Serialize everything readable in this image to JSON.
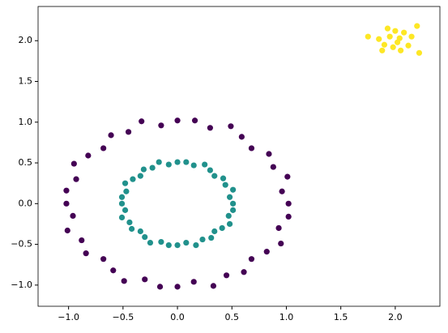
{
  "chart_data": {
    "type": "scatter",
    "series": [
      {
        "color": "#440154",
        "x": [
          1.02,
          0.96,
          1.01,
          0.88,
          0.84,
          0.68,
          0.59,
          0.49,
          0.3,
          0.16,
          0,
          -0.15,
          -0.33,
          -0.45,
          -0.61,
          -0.68,
          -0.82,
          -0.95,
          -0.93,
          -1.02,
          -1.02,
          -0.96,
          -1.01,
          -0.88,
          -0.84,
          -0.68,
          -0.59,
          -0.49,
          -0.3,
          -0.16,
          0,
          0.15,
          0.33,
          0.45,
          0.61,
          0.68,
          0.82,
          0.95,
          0.93,
          1.02
        ],
        "values": [
          0,
          0.15,
          0.33,
          0.45,
          0.61,
          0.68,
          0.82,
          0.95,
          0.93,
          1.02,
          1.02,
          0.96,
          1.01,
          0.88,
          0.84,
          0.68,
          0.59,
          0.49,
          0.3,
          0.16,
          0,
          -0.15,
          -0.33,
          -0.45,
          -0.61,
          -0.68,
          -0.82,
          -0.95,
          -0.93,
          -1.02,
          -1.02,
          -0.96,
          -1.01,
          -0.88,
          -0.84,
          -0.68,
          -0.59,
          -0.49,
          -0.3,
          -0.16
        ]
      },
      {
        "color": "#21918c",
        "x": [
          0.51,
          0.48,
          0.51,
          0.44,
          0.42,
          0.34,
          0.3,
          0.25,
          0.15,
          0.08,
          0,
          -0.08,
          -0.17,
          -0.23,
          -0.31,
          -0.34,
          -0.41,
          -0.48,
          -0.47,
          -0.51,
          -0.51,
          -0.48,
          -0.51,
          -0.44,
          -0.42,
          -0.34,
          -0.3,
          -0.25,
          -0.15,
          -0.08,
          0,
          0.08,
          0.17,
          0.23,
          0.31,
          0.34,
          0.41,
          0.48,
          0.47,
          0.51
        ],
        "values": [
          0,
          0.08,
          0.17,
          0.23,
          0.31,
          0.34,
          0.41,
          0.48,
          0.47,
          0.51,
          0.51,
          0.48,
          0.51,
          0.44,
          0.42,
          0.34,
          0.3,
          0.25,
          0.15,
          0.08,
          0,
          -0.08,
          -0.17,
          -0.23,
          -0.31,
          -0.34,
          -0.41,
          -0.48,
          -0.47,
          -0.51,
          -0.51,
          -0.48,
          -0.51,
          -0.44,
          -0.42,
          -0.34,
          -0.3,
          -0.25,
          -0.15,
          -0.08
        ]
      },
      {
        "color": "#fde725",
        "x": [
          1.95,
          2.02,
          2.08,
          1.9,
          2.0,
          2.12,
          1.85,
          2.05,
          1.98,
          2.15,
          1.93,
          2.2,
          1.75,
          2.22,
          1.88,
          2.04
        ],
        "values": [
          2.05,
          1.98,
          2.1,
          1.95,
          2.12,
          1.94,
          2.02,
          1.88,
          1.92,
          2.05,
          2.15,
          2.18,
          2.05,
          1.85,
          1.88,
          2.03
        ]
      }
    ],
    "xlim": [
      -1.28,
      2.41
    ],
    "ylim": [
      -1.26,
      2.42
    ],
    "xticks": [
      {
        "value": -1,
        "label": "−1.0"
      },
      {
        "value": -0.5,
        "label": "−0.5"
      },
      {
        "value": 0,
        "label": "0.0"
      },
      0.5,
      {
        "value": 1,
        "label": "1.0"
      },
      1.5,
      {
        "value": 2,
        "label": "2.0"
      }
    ],
    "yticks": [
      {
        "value": -1,
        "label": "−1.0"
      },
      {
        "value": -0.5,
        "label": "−0.5"
      },
      {
        "value": 0,
        "label": "0.0"
      },
      0.5,
      {
        "value": 1,
        "label": "1.0"
      },
      1.5,
      {
        "value": 2,
        "label": "2.0"
      }
    ],
    "grid": false
  }
}
